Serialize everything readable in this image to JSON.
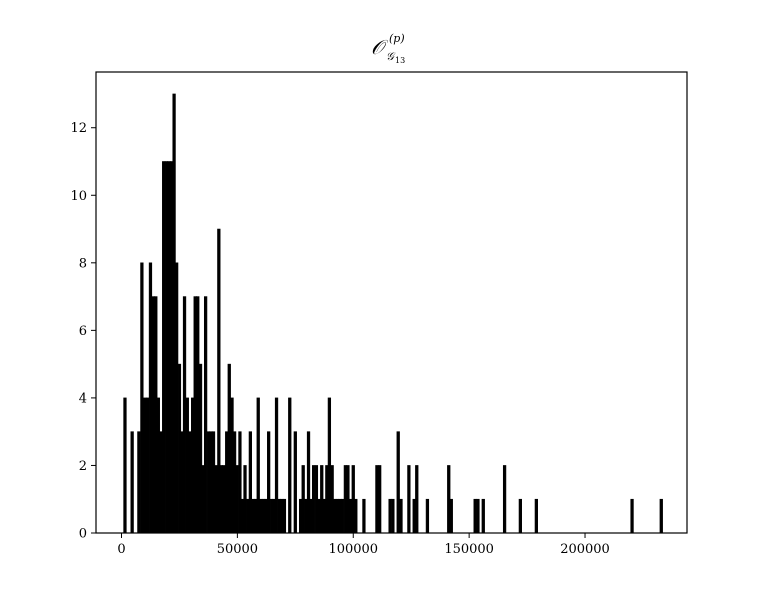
{
  "chart_data": {
    "type": "bar",
    "title": {
      "main": "𝒪",
      "sup": "(p)",
      "sub": "𝒢",
      "subsub": "13"
    },
    "xlabel": "",
    "ylabel": "",
    "xlim": [
      -11000,
      244000
    ],
    "ylim": [
      0,
      13.65
    ],
    "bin_width": 1150,
    "xticks": [
      0,
      50000,
      100000,
      150000,
      200000
    ],
    "xtick_labels": [
      "0",
      "50000",
      "100000",
      "150000",
      "200000"
    ],
    "yticks": [
      0,
      2,
      4,
      6,
      8,
      10,
      12
    ],
    "ytick_labels": [
      "0",
      "2",
      "4",
      "6",
      "8",
      "10",
      "12"
    ],
    "bar_color": "#000000",
    "grid": false,
    "x": [
      1500,
      4600,
      7500,
      8800,
      10200,
      11300,
      12500,
      13600,
      14800,
      15900,
      17000,
      18200,
      19400,
      20500,
      21600,
      22700,
      23800,
      25000,
      26100,
      27200,
      28400,
      29500,
      30700,
      31800,
      32900,
      34100,
      35200,
      36300,
      37500,
      38600,
      39700,
      40900,
      42000,
      43100,
      44200,
      45400,
      46500,
      47700,
      48800,
      49900,
      51100,
      52200,
      53300,
      54500,
      55600,
      56800,
      57900,
      59000,
      60100,
      61300,
      62400,
      63500,
      64700,
      65800,
      66900,
      68100,
      69200,
      70300,
      72600,
      75000,
      77300,
      78400,
      79600,
      80700,
      81800,
      82900,
      84100,
      85200,
      86400,
      87500,
      88600,
      89700,
      90900,
      92000,
      93200,
      94300,
      95400,
      96600,
      97700,
      98800,
      100000,
      101100,
      104600,
      110200,
      111400,
      115900,
      117100,
      119400,
      120600,
      124000,
      126300,
      127400,
      132000,
      141200,
      142300,
      152600,
      153800,
      156100,
      165300,
      172100,
      179000,
      220300,
      232900
    ],
    "values": [
      4,
      3,
      3,
      8,
      4,
      4,
      8,
      7,
      7,
      4,
      3,
      11,
      11,
      11,
      11,
      13,
      8,
      5,
      3,
      7,
      4,
      3,
      4,
      7,
      7,
      5,
      2,
      7,
      3,
      3,
      3,
      2,
      9,
      2,
      2,
      3,
      5,
      4,
      3,
      2,
      3,
      1,
      2,
      1,
      3,
      1,
      1,
      4,
      1,
      1,
      1,
      3,
      1,
      1,
      4,
      1,
      1,
      1,
      4,
      3,
      1,
      2,
      1,
      3,
      1,
      2,
      2,
      1,
      2,
      1,
      2,
      4,
      2,
      1,
      1,
      1,
      1,
      2,
      2,
      1,
      2,
      1,
      1,
      2,
      2,
      1,
      1,
      3,
      1,
      2,
      1,
      2,
      1,
      2,
      1,
      1,
      1,
      1,
      2,
      1,
      1,
      1,
      1
    ]
  }
}
